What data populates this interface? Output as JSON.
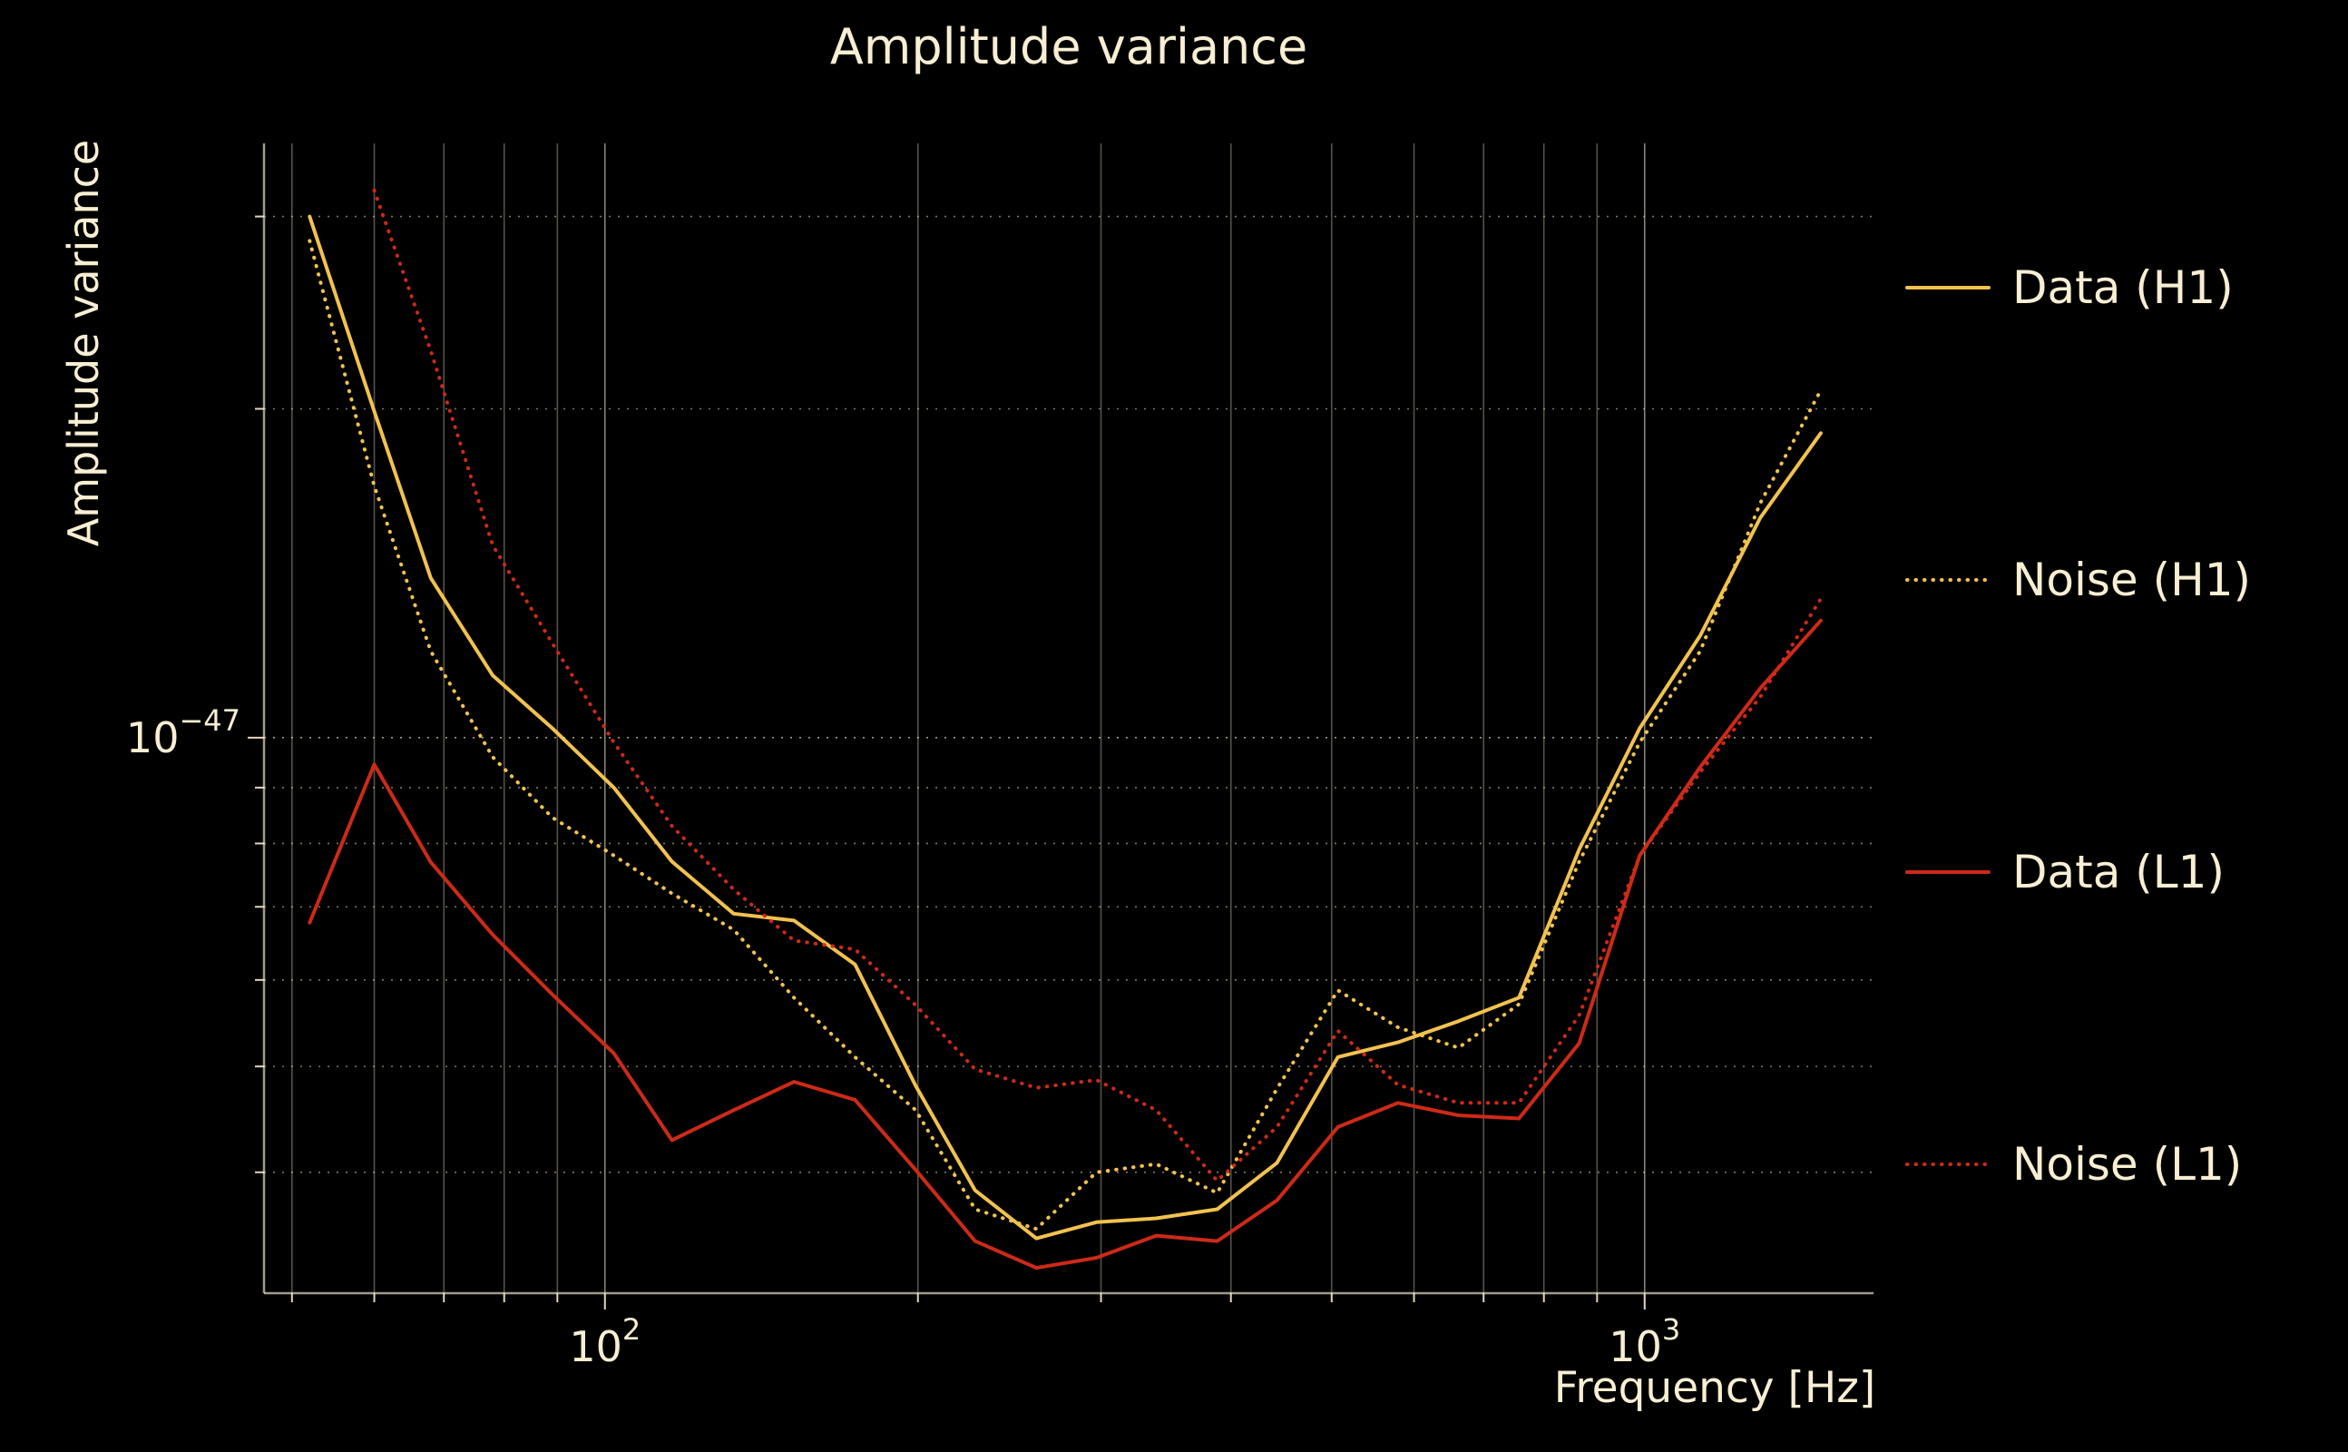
{
  "figure": {
    "background": "#000000",
    "text_color": "#f8eed2"
  },
  "chart_data": {
    "type": "line",
    "title": "Amplitude variance",
    "xlabel": "Frequency [Hz]",
    "ylabel": "Amplitude variance",
    "x_scale": "log",
    "y_scale": "log",
    "xlim": [
      47,
      1660
    ],
    "ylim": [
      3.1e-48,
      3.5e-47
    ],
    "grid": true,
    "legend_position": "right-outside",
    "colors": {
      "gold": "#f1c24f",
      "red": "#cd2a18",
      "grid": "#f8eed2",
      "text": "#f8eed2"
    },
    "x_ticks": [
      {
        "value": 100,
        "base": "10",
        "exp": "2"
      },
      {
        "value": 1000,
        "base": "10",
        "exp": "3"
      }
    ],
    "y_ticks": [
      {
        "value": 1e-47,
        "base": "10",
        "exp": "−47"
      }
    ],
    "x": [
      52,
      60,
      68,
      78,
      89,
      102,
      116,
      133,
      152,
      174,
      199,
      227,
      260,
      297,
      339,
      388,
      443,
      507,
      579,
      662,
      757,
      865,
      989,
      1131,
      1292,
      1477
    ],
    "series": [
      {
        "key": "data-h1",
        "name": "Data (H1)",
        "color": "gold",
        "style": "solid",
        "values": [
          3e-47,
          1.99e-47,
          1.4e-47,
          1.14e-47,
          1.02e-47,
          9e-48,
          7.7e-48,
          6.9e-48,
          6.8e-48,
          6.2e-48,
          4.8e-48,
          3.85e-48,
          3.48e-48,
          3.6e-48,
          3.63e-48,
          3.7e-48,
          4.08e-48,
          5.1e-48,
          5.26e-48,
          5.5e-48,
          5.78e-48,
          7.9e-48,
          1.02e-47,
          1.24e-47,
          1.59e-47,
          1.9e-47
        ]
      },
      {
        "key": "noise-h1",
        "name": "Noise (H1)",
        "color": "gold",
        "style": "dotted",
        "values": [
          2.85e-47,
          1.7e-47,
          1.2e-47,
          9.6e-48,
          8.45e-48,
          7.8e-48,
          7.2e-48,
          6.67e-48,
          5.78e-48,
          5.1e-48,
          4.56e-48,
          3.7e-48,
          3.55e-48,
          4e-48,
          4.07e-48,
          3.83e-48,
          4.77e-48,
          5.87e-48,
          5.43e-48,
          5.2e-48,
          5.7e-48,
          7.7e-48,
          9.9e-48,
          1.2e-47,
          1.64e-47,
          2.08e-47
        ]
      },
      {
        "key": "data-l1",
        "name": "Data (L1)",
        "color": "red",
        "style": "solid",
        "values": [
          6.77e-48,
          9.45e-48,
          7.69e-48,
          6.6e-48,
          5.82e-48,
          5.14e-48,
          4.28e-48,
          4.56e-48,
          4.84e-48,
          4.66e-48,
          4.02e-48,
          3.46e-48,
          3.27e-48,
          3.34e-48,
          3.5e-48,
          3.46e-48,
          3.77e-48,
          4.4e-48,
          4.63e-48,
          4.51e-48,
          4.48e-48,
          5.25e-48,
          7.8e-48,
          9.4e-48,
          1.11e-47,
          1.28e-47
        ]
      },
      {
        "key": "noise-l1",
        "name": "Noise (L1)",
        "color": "red",
        "style": "dotted",
        "values": [
          null,
          3.17e-47,
          2.26e-47,
          1.5e-47,
          1.22e-47,
          9.9e-48,
          8.3e-48,
          7.26e-48,
          6.52e-48,
          6.4e-48,
          5.69e-48,
          4.97e-48,
          4.78e-48,
          4.86e-48,
          4.56e-48,
          3.93e-48,
          4.4e-48,
          5.39e-48,
          4.81e-48,
          4.63e-48,
          4.63e-48,
          5.57e-48,
          7.8e-48,
          9.3e-48,
          1.09e-47,
          1.34e-47
        ]
      }
    ]
  }
}
